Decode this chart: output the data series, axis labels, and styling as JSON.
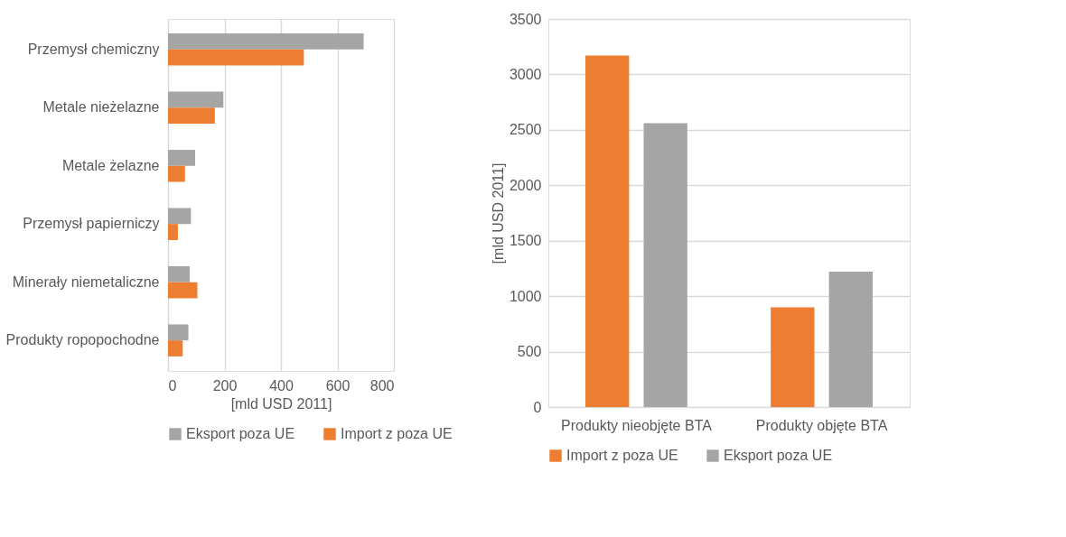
{
  "chart_data": [
    {
      "type": "bar",
      "orientation": "horizontal",
      "categories": [
        "Przemysł chemiczny",
        "Metale nieżelazne",
        "Metale żelazne",
        "Przemysł papierniczy",
        "Minerały niemetaliczne",
        "Produkty ropopochodne"
      ],
      "series": [
        {
          "name": "Eksport poza UE",
          "color": "#a5a5a5",
          "values": [
            693,
            196,
            96,
            81,
            77,
            72
          ]
        },
        {
          "name": "Import z poza UE",
          "color": "#ed7d31",
          "values": [
            481,
            166,
            60,
            35,
            104,
            52
          ]
        }
      ],
      "xlim": [
        0,
        800
      ],
      "xticks": [
        0,
        200,
        400,
        600,
        800
      ],
      "xlabel": "[mld USD 2011]",
      "grid": "x",
      "legend": "bottom"
    },
    {
      "type": "bar",
      "categories": [
        "Produkty nieobjęte BTA",
        "Produkty objęte BTA"
      ],
      "series": [
        {
          "name": "Import z poza UE",
          "color": "#ed7d31",
          "values": [
            3170,
            900
          ]
        },
        {
          "name": "Eksport poza UE",
          "color": "#a5a5a5",
          "values": [
            2560,
            1220
          ]
        }
      ],
      "ylim": [
        0,
        3500
      ],
      "yticks": [
        0,
        500,
        1000,
        1500,
        2000,
        2500,
        3000,
        3500
      ],
      "ylabel": "[mld USD 2011]",
      "grid": "y",
      "legend": "bottom"
    }
  ]
}
